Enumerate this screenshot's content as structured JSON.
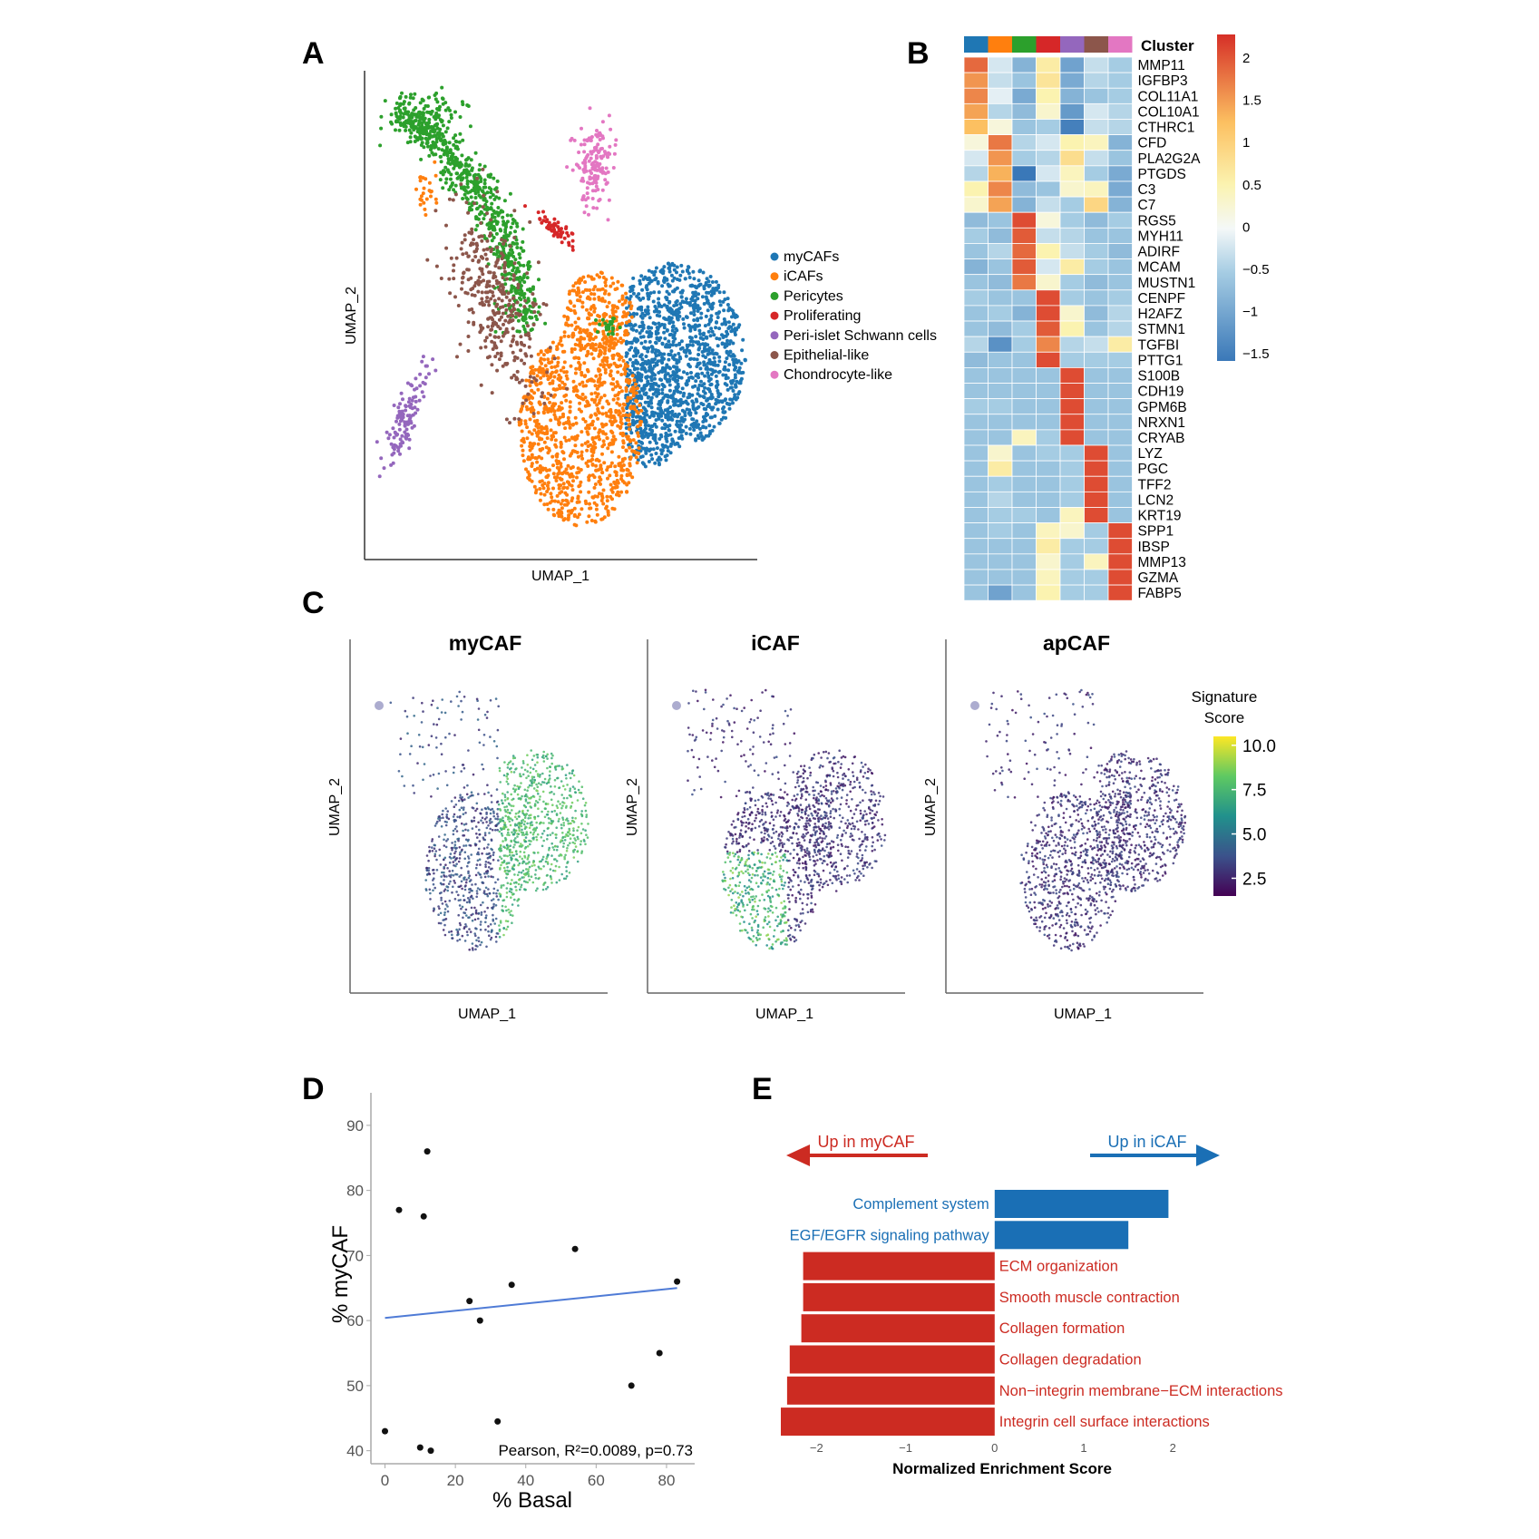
{
  "panel_labels": {
    "a": "A",
    "b": "B",
    "c": "C",
    "d": "D",
    "e": "E"
  },
  "colors": {
    "myCAFs": "#1f77b4",
    "iCAFs": "#ff7f0e",
    "Pericytes": "#2ca02c",
    "Proliferating": "#d62728",
    "Peri-islet Schwann cells": "#9467bd",
    "Epithelial-like": "#8c564b",
    "Chondrocyte-like": "#e377c2",
    "up_mycaf": "#cc2b22",
    "up_icaf": "#1a6fb5",
    "regression_line": "#4f7bd6"
  },
  "chart_data": [
    {
      "panel": "A",
      "type": "scatter",
      "title": "",
      "xlabel": "UMAP_1",
      "ylabel": "UMAP_2",
      "legend": [
        "myCAFs",
        "iCAFs",
        "Pericytes",
        "Proliferating",
        "Peri-islet Schwann cells",
        "Epithelial-like",
        "Chondrocyte-like"
      ],
      "legend_position": "right"
    },
    {
      "panel": "B",
      "type": "heatmap",
      "annotation_label": "Cluster",
      "clusters": [
        "myCAFs",
        "iCAFs",
        "Pericytes",
        "Proliferating",
        "Peri-islet Schwann cells",
        "Epithelial-like",
        "Chondrocyte-like"
      ],
      "genes": [
        "MMP11",
        "IGFBP3",
        "COL11A1",
        "COL10A1",
        "CTHRC1",
        "CFD",
        "PLA2G2A",
        "PTGDS",
        "C3",
        "C7",
        "RGS5",
        "MYH11",
        "ADIRF",
        "MCAM",
        "MUSTN1",
        "CENPF",
        "H2AFZ",
        "STMN1",
        "TGFBI",
        "PTTG1",
        "S100B",
        "CDH19",
        "GPM6B",
        "NRXN1",
        "CRYAB",
        "LYZ",
        "PGC",
        "TFF2",
        "LCN2",
        "KRT19",
        "SPP1",
        "IBSP",
        "MMP13",
        "GZMA",
        "FABP5"
      ],
      "values": [
        [
          1.8,
          -0.2,
          -0.8,
          0.6,
          -1.0,
          -0.3,
          -0.5
        ],
        [
          1.5,
          -0.3,
          -0.6,
          0.7,
          -0.9,
          -0.4,
          -0.5
        ],
        [
          1.6,
          -0.1,
          -0.9,
          0.5,
          -0.8,
          -0.6,
          -0.5
        ],
        [
          1.4,
          -0.4,
          -0.7,
          0.3,
          -1.1,
          -0.2,
          -0.4
        ],
        [
          1.2,
          0.2,
          -0.6,
          -0.5,
          -1.4,
          -0.3,
          -0.4
        ],
        [
          0.2,
          1.7,
          -0.4,
          -0.2,
          0.5,
          0.4,
          -0.8
        ],
        [
          -0.2,
          1.5,
          -0.5,
          -0.4,
          0.8,
          -0.3,
          -0.6
        ],
        [
          -0.4,
          1.3,
          -1.5,
          -0.2,
          0.4,
          -0.5,
          -0.9
        ],
        [
          0.5,
          1.6,
          -0.7,
          -0.6,
          0.3,
          0.4,
          -0.9
        ],
        [
          0.3,
          1.4,
          -0.8,
          -0.3,
          -0.5,
          0.9,
          -0.8
        ],
        [
          -0.7,
          -0.6,
          2.0,
          0.2,
          -0.5,
          -0.7,
          -0.5
        ],
        [
          -0.5,
          -0.7,
          1.9,
          -0.3,
          -0.4,
          -0.6,
          -0.6
        ],
        [
          -0.6,
          -0.4,
          1.8,
          0.5,
          -0.3,
          -0.5,
          -0.7
        ],
        [
          -0.8,
          -0.6,
          1.9,
          -0.2,
          0.6,
          -0.5,
          -0.6
        ],
        [
          -0.6,
          -0.7,
          1.7,
          0.3,
          -0.5,
          -0.7,
          -0.6
        ],
        [
          -0.5,
          -0.6,
          -0.6,
          2.0,
          -0.5,
          -0.6,
          -0.5
        ],
        [
          -0.6,
          -0.5,
          -0.8,
          2.0,
          0.3,
          -0.7,
          -0.4
        ],
        [
          -0.6,
          -0.7,
          -0.5,
          1.9,
          0.5,
          -0.6,
          -0.4
        ],
        [
          -0.4,
          -1.2,
          -0.5,
          1.6,
          -0.4,
          -0.3,
          0.6
        ],
        [
          -0.7,
          -0.6,
          -0.6,
          2.0,
          -0.5,
          -0.5,
          -0.5
        ],
        [
          -0.6,
          -0.6,
          -0.6,
          -0.6,
          2.0,
          -0.6,
          -0.6
        ],
        [
          -0.6,
          -0.6,
          -0.6,
          -0.6,
          2.0,
          -0.6,
          -0.6
        ],
        [
          -0.5,
          -0.5,
          -0.6,
          -0.6,
          2.0,
          -0.6,
          -0.6
        ],
        [
          -0.6,
          -0.6,
          -0.6,
          -0.6,
          2.0,
          -0.6,
          -0.6
        ],
        [
          -0.6,
          -0.6,
          0.4,
          -0.5,
          2.0,
          -0.6,
          -0.6
        ],
        [
          -0.6,
          0.3,
          -0.6,
          -0.5,
          -0.5,
          2.0,
          -0.6
        ],
        [
          -0.6,
          0.6,
          -0.6,
          -0.6,
          -0.5,
          2.0,
          -0.6
        ],
        [
          -0.6,
          -0.5,
          -0.6,
          -0.6,
          -0.5,
          2.0,
          -0.6
        ],
        [
          -0.6,
          -0.4,
          -0.6,
          -0.6,
          -0.5,
          2.0,
          -0.6
        ],
        [
          -0.6,
          -0.5,
          -0.5,
          -0.6,
          0.4,
          2.0,
          -0.6
        ],
        [
          -0.6,
          -0.5,
          -0.6,
          0.4,
          0.3,
          -0.5,
          2.0
        ],
        [
          -0.6,
          -0.6,
          -0.6,
          0.6,
          -0.5,
          -0.5,
          2.0
        ],
        [
          -0.6,
          -0.6,
          -0.6,
          0.3,
          -0.5,
          0.4,
          2.0
        ],
        [
          -0.6,
          -0.6,
          -0.6,
          0.4,
          -0.5,
          -0.5,
          2.0
        ],
        [
          -0.6,
          -1.0,
          -0.6,
          0.5,
          -0.5,
          -0.5,
          2.0
        ]
      ],
      "colorbar_ticks": [
        "2",
        "1.5",
        "1",
        "0.5",
        "0",
        "−0.5",
        "−1",
        "−1.5"
      ],
      "color_range": [
        -1.5,
        2.2
      ]
    },
    {
      "panel": "C",
      "type": "scatter",
      "subplots": [
        "myCAF",
        "iCAF",
        "apCAF"
      ],
      "xlabel": "UMAP_1",
      "ylabel": "UMAP_2",
      "colorbar_title_line1": "Signature",
      "colorbar_title_line2": "Score",
      "colorbar_ticks": [
        "10.0",
        "7.5",
        "5.0",
        "2.5"
      ],
      "colorbar_range": [
        1.5,
        10.5
      ]
    },
    {
      "panel": "D",
      "type": "scatter",
      "xlabel": "% Basal",
      "ylabel": "% myCAF",
      "xlim": [
        -4,
        88
      ],
      "ylim": [
        38,
        95
      ],
      "xticks": [
        "0",
        "20",
        "40",
        "60",
        "80"
      ],
      "yticks": [
        "40",
        "50",
        "60",
        "70",
        "80",
        "90"
      ],
      "x": [
        0,
        10,
        13,
        12,
        4,
        11,
        24,
        27,
        36,
        54,
        32,
        70,
        78,
        83
      ],
      "y": [
        43,
        40.5,
        40,
        86,
        77,
        76,
        63,
        60,
        65.5,
        71,
        44.5,
        50,
        55,
        66
      ],
      "fit_line": {
        "x": [
          0,
          83
        ],
        "y": [
          60.4,
          65.0
        ]
      },
      "annotation": "Pearson, R²=0.0089, p=0.73"
    },
    {
      "panel": "E",
      "type": "bar",
      "xlabel": "Normalized Enrichment Score",
      "xlim": [
        -2.4,
        2.15
      ],
      "xticks": [
        "−2",
        "−1",
        "0",
        "1",
        "2"
      ],
      "arrow_left_label": "Up in myCAF",
      "arrow_right_label": "Up in iCAF",
      "categories": [
        "Complement system",
        "EGF/EGFR signaling pathway",
        "ECM organization",
        "Smooth muscle contraction",
        "Collagen formation",
        "Collagen degradation",
        "Non−integrin membrane−ECM interactions",
        "Integrin cell surface interactions"
      ],
      "values": [
        1.95,
        1.5,
        -2.15,
        -2.15,
        -2.17,
        -2.3,
        -2.33,
        -2.4
      ]
    }
  ]
}
